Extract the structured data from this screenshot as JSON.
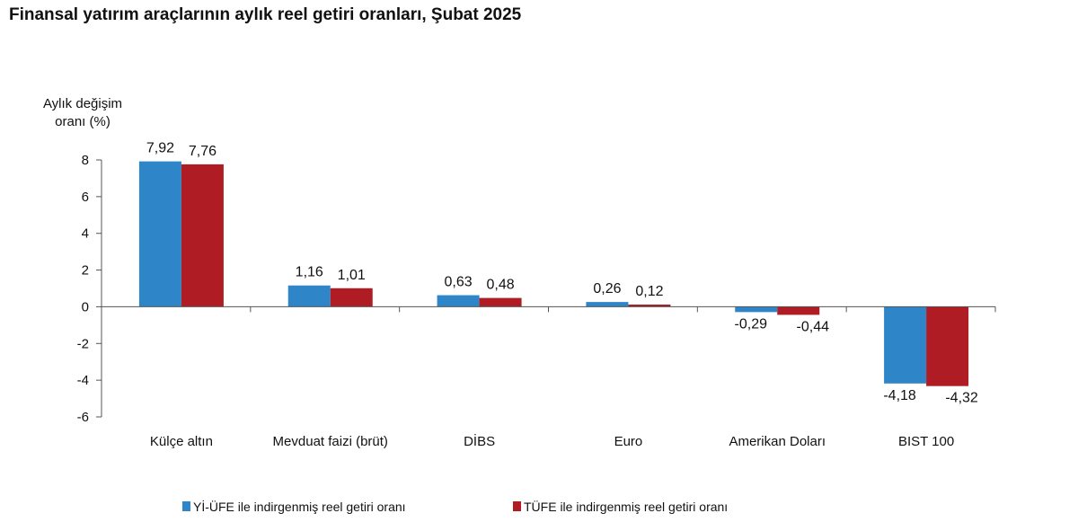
{
  "title": "Finansal yatırım araçlarının aylık reel getiri oranları, Şubat 2025",
  "chart_data": {
    "type": "bar",
    "title": "Finansal yatırım araçlarının aylık reel getiri oranları, Şubat 2025",
    "ylabel_lines": [
      "Aylık değişim",
      "oranı (%)"
    ],
    "xlabel": "",
    "ylim": [
      -6,
      8
    ],
    "yticks": [
      8,
      6,
      4,
      2,
      0,
      -2,
      -4,
      -6
    ],
    "categories": [
      "Külçe altın",
      "Mevduat faizi (brüt)",
      "DİBS",
      "Euro",
      "Amerikan Doları",
      "BIST 100"
    ],
    "series": [
      {
        "name": "Yİ-ÜFE ile indirgenmiş reel getiri oranı",
        "color": "#2e86c9",
        "values": [
          7.92,
          1.16,
          0.63,
          0.26,
          -0.29,
          -4.18
        ],
        "labels": [
          "7,92",
          "1,16",
          "0,63",
          "0,26",
          "-0,29",
          "-4,18"
        ]
      },
      {
        "name": "TÜFE ile indirgenmiş reel getiri oranı",
        "color": "#b01c23",
        "values": [
          7.76,
          1.01,
          0.48,
          0.12,
          -0.44,
          -4.32
        ],
        "labels": [
          "7,76",
          "1,01",
          "0,48",
          "0,12",
          "-0,44",
          "-4,32"
        ]
      }
    ],
    "grid": false,
    "legend_position": "bottom"
  }
}
